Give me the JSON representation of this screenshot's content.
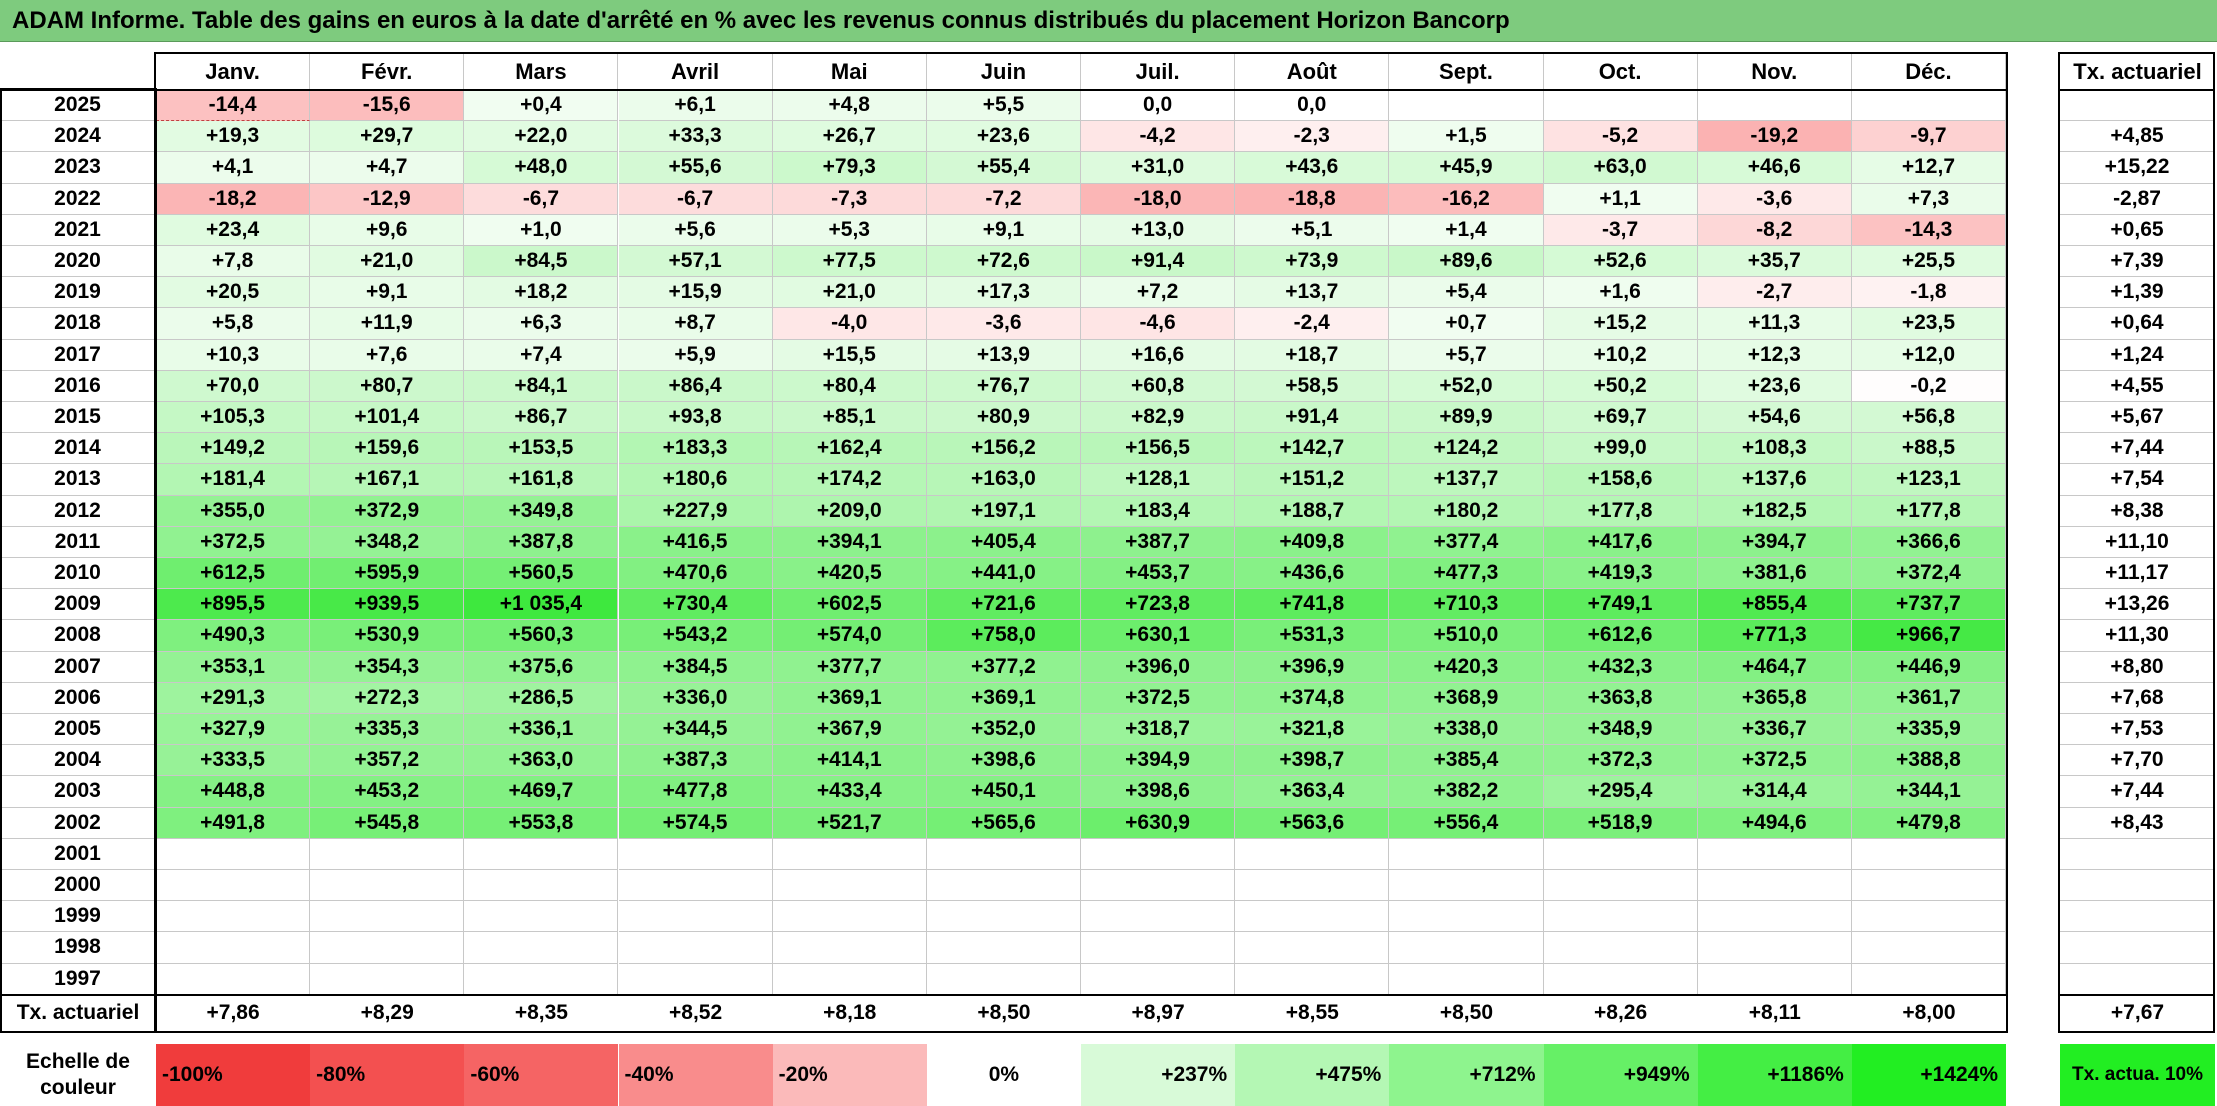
{
  "title": "ADAM Informe. Table des gains en euros à la date d'arrêté en % avec les revenus connus distribués du placement Horizon Bancorp",
  "colors": {
    "title_bg": "#7ecb7e",
    "neg_max": "#f03c3c",
    "pos_max": "#22ee22"
  },
  "chart_data": {
    "type": "table",
    "columns": [
      "Janv.",
      "Févr.",
      "Mars",
      "Avril",
      "Mai",
      "Juin",
      "Juil.",
      "Août",
      "Sept.",
      "Oct.",
      "Nov.",
      "Déc."
    ],
    "annual_header": "Tx. actuariel",
    "rows": [
      {
        "year": "2025",
        "values": [
          "-14,4",
          "-15,6",
          "+0,4",
          "+6,1",
          "+4,8",
          "+5,5",
          "0,0",
          "0,0",
          "",
          "",
          "",
          ""
        ],
        "rate": ""
      },
      {
        "year": "2024",
        "values": [
          "+19,3",
          "+29,7",
          "+22,0",
          "+33,3",
          "+26,7",
          "+23,6",
          "-4,2",
          "-2,3",
          "+1,5",
          "-5,2",
          "-19,2",
          "-9,7"
        ],
        "rate": "+4,85"
      },
      {
        "year": "2023",
        "values": [
          "+4,1",
          "+4,7",
          "+48,0",
          "+55,6",
          "+79,3",
          "+55,4",
          "+31,0",
          "+43,6",
          "+45,9",
          "+63,0",
          "+46,6",
          "+12,7"
        ],
        "rate": "+15,22"
      },
      {
        "year": "2022",
        "values": [
          "-18,2",
          "-12,9",
          "-6,7",
          "-6,7",
          "-7,3",
          "-7,2",
          "-18,0",
          "-18,8",
          "-16,2",
          "+1,1",
          "-3,6",
          "+7,3"
        ],
        "rate": "-2,87"
      },
      {
        "year": "2021",
        "values": [
          "+23,4",
          "+9,6",
          "+1,0",
          "+5,6",
          "+5,3",
          "+9,1",
          "+13,0",
          "+5,1",
          "+1,4",
          "-3,7",
          "-8,2",
          "-14,3"
        ],
        "rate": "+0,65"
      },
      {
        "year": "2020",
        "values": [
          "+7,8",
          "+21,0",
          "+84,5",
          "+57,1",
          "+77,5",
          "+72,6",
          "+91,4",
          "+73,9",
          "+89,6",
          "+52,6",
          "+35,7",
          "+25,5"
        ],
        "rate": "+7,39"
      },
      {
        "year": "2019",
        "values": [
          "+20,5",
          "+9,1",
          "+18,2",
          "+15,9",
          "+21,0",
          "+17,3",
          "+7,2",
          "+13,7",
          "+5,4",
          "+1,6",
          "-2,7",
          "-1,8"
        ],
        "rate": "+1,39"
      },
      {
        "year": "2018",
        "values": [
          "+5,8",
          "+11,9",
          "+6,3",
          "+8,7",
          "-4,0",
          "-3,6",
          "-4,6",
          "-2,4",
          "+0,7",
          "+15,2",
          "+11,3",
          "+23,5"
        ],
        "rate": "+0,64"
      },
      {
        "year": "2017",
        "values": [
          "+10,3",
          "+7,6",
          "+7,4",
          "+5,9",
          "+15,5",
          "+13,9",
          "+16,6",
          "+18,7",
          "+5,7",
          "+10,2",
          "+12,3",
          "+12,0"
        ],
        "rate": "+1,24"
      },
      {
        "year": "2016",
        "values": [
          "+70,0",
          "+80,7",
          "+84,1",
          "+86,4",
          "+80,4",
          "+76,7",
          "+60,8",
          "+58,5",
          "+52,0",
          "+50,2",
          "+23,6",
          "-0,2"
        ],
        "rate": "+4,55"
      },
      {
        "year": "2015",
        "values": [
          "+105,3",
          "+101,4",
          "+86,7",
          "+93,8",
          "+85,1",
          "+80,9",
          "+82,9",
          "+91,4",
          "+89,9",
          "+69,7",
          "+54,6",
          "+56,8"
        ],
        "rate": "+5,67"
      },
      {
        "year": "2014",
        "values": [
          "+149,2",
          "+159,6",
          "+153,5",
          "+183,3",
          "+162,4",
          "+156,2",
          "+156,5",
          "+142,7",
          "+124,2",
          "+99,0",
          "+108,3",
          "+88,5"
        ],
        "rate": "+7,44"
      },
      {
        "year": "2013",
        "values": [
          "+181,4",
          "+167,1",
          "+161,8",
          "+180,6",
          "+174,2",
          "+163,0",
          "+128,1",
          "+151,2",
          "+137,7",
          "+158,6",
          "+137,6",
          "+123,1"
        ],
        "rate": "+7,54"
      },
      {
        "year": "2012",
        "values": [
          "+355,0",
          "+372,9",
          "+349,8",
          "+227,9",
          "+209,0",
          "+197,1",
          "+183,4",
          "+188,7",
          "+180,2",
          "+177,8",
          "+182,5",
          "+177,8"
        ],
        "rate": "+8,38"
      },
      {
        "year": "2011",
        "values": [
          "+372,5",
          "+348,2",
          "+387,8",
          "+416,5",
          "+394,1",
          "+405,4",
          "+387,7",
          "+409,8",
          "+377,4",
          "+417,6",
          "+394,7",
          "+366,6"
        ],
        "rate": "+11,10"
      },
      {
        "year": "2010",
        "values": [
          "+612,5",
          "+595,9",
          "+560,5",
          "+470,6",
          "+420,5",
          "+441,0",
          "+453,7",
          "+436,6",
          "+477,3",
          "+419,3",
          "+381,6",
          "+372,4"
        ],
        "rate": "+11,17"
      },
      {
        "year": "2009",
        "values": [
          "+895,5",
          "+939,5",
          "+1 035,4",
          "+730,4",
          "+602,5",
          "+721,6",
          "+723,8",
          "+741,8",
          "+710,3",
          "+749,1",
          "+855,4",
          "+737,7"
        ],
        "rate": "+13,26"
      },
      {
        "year": "2008",
        "values": [
          "+490,3",
          "+530,9",
          "+560,3",
          "+543,2",
          "+574,0",
          "+758,0",
          "+630,1",
          "+531,3",
          "+510,0",
          "+612,6",
          "+771,3",
          "+966,7"
        ],
        "rate": "+11,30"
      },
      {
        "year": "2007",
        "values": [
          "+353,1",
          "+354,3",
          "+375,6",
          "+384,5",
          "+377,7",
          "+377,2",
          "+396,0",
          "+396,9",
          "+420,3",
          "+432,3",
          "+464,7",
          "+446,9"
        ],
        "rate": "+8,80"
      },
      {
        "year": "2006",
        "values": [
          "+291,3",
          "+272,3",
          "+286,5",
          "+336,0",
          "+369,1",
          "+369,1",
          "+372,5",
          "+374,8",
          "+368,9",
          "+363,8",
          "+365,8",
          "+361,7"
        ],
        "rate": "+7,68"
      },
      {
        "year": "2005",
        "values": [
          "+327,9",
          "+335,3",
          "+336,1",
          "+344,5",
          "+367,9",
          "+352,0",
          "+318,7",
          "+321,8",
          "+338,0",
          "+348,9",
          "+336,7",
          "+335,9"
        ],
        "rate": "+7,53"
      },
      {
        "year": "2004",
        "values": [
          "+333,5",
          "+357,2",
          "+363,0",
          "+387,3",
          "+414,1",
          "+398,6",
          "+394,9",
          "+398,7",
          "+385,4",
          "+372,3",
          "+372,5",
          "+388,8"
        ],
        "rate": "+7,70"
      },
      {
        "year": "2003",
        "values": [
          "+448,8",
          "+453,2",
          "+469,7",
          "+477,8",
          "+433,4",
          "+450,1",
          "+398,6",
          "+363,4",
          "+382,2",
          "+295,4",
          "+314,4",
          "+344,1"
        ],
        "rate": "+7,44"
      },
      {
        "year": "2002",
        "values": [
          "+491,8",
          "+545,8",
          "+553,8",
          "+574,5",
          "+521,7",
          "+565,6",
          "+630,9",
          "+563,6",
          "+556,4",
          "+518,9",
          "+494,6",
          "+479,8"
        ],
        "rate": "+8,43"
      },
      {
        "year": "2001",
        "values": [
          "",
          "",
          "",
          "",
          "",
          "",
          "",
          "",
          "",
          "",
          "",
          ""
        ],
        "rate": ""
      },
      {
        "year": "2000",
        "values": [
          "",
          "",
          "",
          "",
          "",
          "",
          "",
          "",
          "",
          "",
          "",
          ""
        ],
        "rate": ""
      },
      {
        "year": "1999",
        "values": [
          "",
          "",
          "",
          "",
          "",
          "",
          "",
          "",
          "",
          "",
          "",
          ""
        ],
        "rate": ""
      },
      {
        "year": "1998",
        "values": [
          "",
          "",
          "",
          "",
          "",
          "",
          "",
          "",
          "",
          "",
          "",
          ""
        ],
        "rate": ""
      },
      {
        "year": "1997",
        "values": [
          "",
          "",
          "",
          "",
          "",
          "",
          "",
          "",
          "",
          "",
          "",
          ""
        ],
        "rate": ""
      }
    ],
    "totals_label": "Tx. actuariel",
    "totals": [
      "+7,86",
      "+8,29",
      "+8,35",
      "+8,52",
      "+8,18",
      "+8,50",
      "+8,97",
      "+8,55",
      "+8,50",
      "+8,26",
      "+8,11",
      "+8,00"
    ],
    "total_rate": "+7,67",
    "scale_label": "Echelle de couleur",
    "scale": [
      "-100%",
      "-80%",
      "-60%",
      "-40%",
      "-20%",
      "0%",
      "+237%",
      "+475%",
      "+712%",
      "+949%",
      "+1186%",
      "+1424%"
    ],
    "scale_colors": [
      "#f03c3c",
      "#f35050",
      "#f56464",
      "#f98c8c",
      "#fbbaba",
      "#ffffff",
      "#d8fad8",
      "#b4f7b4",
      "#8ef48e",
      "#66f066",
      "#44ee44",
      "#22ee22"
    ],
    "scale_tx": "Tx. actua. 10%",
    "scale_tx_color": "#22ee22"
  }
}
